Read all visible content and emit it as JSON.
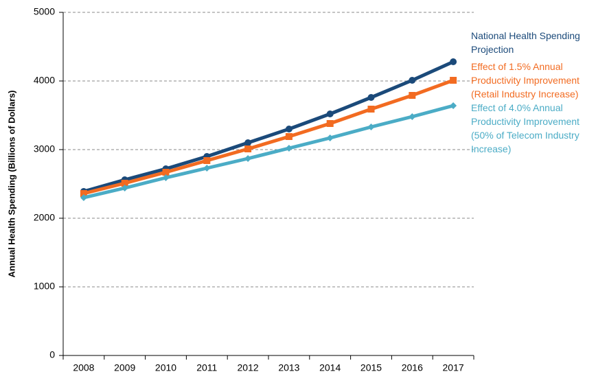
{
  "chart_data": {
    "type": "line",
    "y_label": "Annual Health Spending (Billions of Dollars)",
    "categories": [
      "2008",
      "2009",
      "2010",
      "2011",
      "2012",
      "2013",
      "2014",
      "2015",
      "2016",
      "2017"
    ],
    "series": [
      {
        "name": "National Health Spending Projection",
        "color": "#1b4a7a",
        "marker": "circle",
        "values": [
          2390,
          2560,
          2720,
          2900,
          3100,
          3300,
          3520,
          3760,
          4010,
          4280
        ]
      },
      {
        "name": "Effect of 1.5% Annual Productivity Improvement (Retail Industry Increase)",
        "color": "#f26b21",
        "marker": "square",
        "values": [
          2360,
          2510,
          2670,
          2840,
          3010,
          3190,
          3380,
          3590,
          3790,
          4010
        ]
      },
      {
        "name": "Effect of 4.0% Annual Productivity Improvement (50% of Telecom Industry Increase)",
        "color": "#4bacc6",
        "marker": "diamond",
        "values": [
          2300,
          2440,
          2590,
          2730,
          2870,
          3020,
          3170,
          3330,
          3480,
          3640
        ]
      }
    ],
    "ylim": [
      0,
      5000
    ],
    "yticks": [
      0,
      1000,
      2000,
      3000,
      4000,
      5000
    ],
    "grid": true
  }
}
